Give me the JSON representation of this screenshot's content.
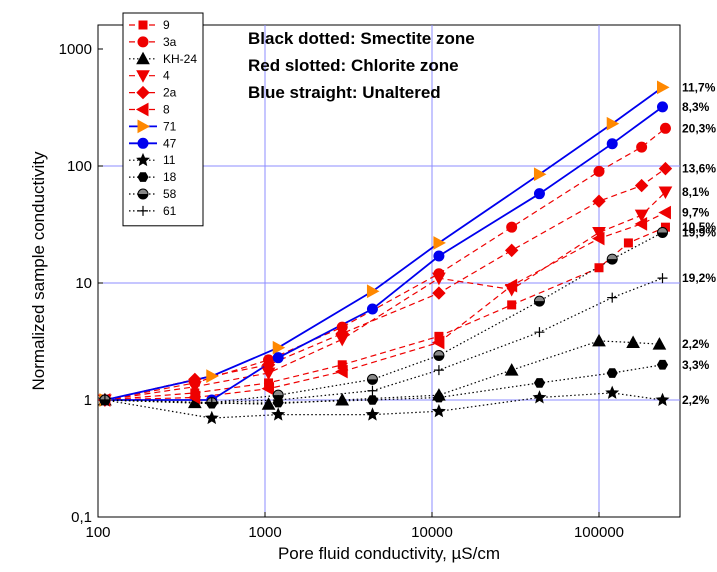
{
  "chart_data": {
    "type": "line",
    "xlabel": "Pore fluid conductivity, µS/cm",
    "ylabel": "Normalized sample conductivity",
    "x_scale": "log",
    "y_scale": "log",
    "xlim": [
      100,
      300000
    ],
    "ylim": [
      0.1,
      1000
    ],
    "x_ticks": [
      {
        "v": 100,
        "label": "100"
      },
      {
        "v": 1000,
        "label": "1000"
      },
      {
        "v": 10000,
        "label": "10000"
      },
      {
        "v": 100000,
        "label": "100000"
      }
    ],
    "y_ticks": [
      {
        "v": 0.1,
        "label": "0,1"
      },
      {
        "v": 1,
        "label": "1"
      },
      {
        "v": 10,
        "label": "10"
      },
      {
        "v": 100,
        "label": "100"
      },
      {
        "v": 1000,
        "label": "1000"
      }
    ],
    "grid": true,
    "grid_color": "#8c8cff",
    "legend_position": "top-left, inside",
    "annotations": [
      "Black dotted: Smectite zone",
      "Red slotted: Chlorite zone",
      "Blue straight: Unaltered"
    ],
    "series": [
      {
        "name": "9",
        "color": "#ee0000",
        "style": "dashed",
        "marker": "square",
        "x": [
          110,
          380,
          1050,
          2900,
          11000,
          30000,
          100000,
          150000,
          250000
        ],
        "y": [
          1,
          1.15,
          1.4,
          2.0,
          3.5,
          6.5,
          13.5,
          22,
          30
        ],
        "end_label": "10,5%"
      },
      {
        "name": "3a",
        "color": "#ee0000",
        "style": "dashed",
        "marker": "circle",
        "x": [
          110,
          380,
          1050,
          2900,
          11000,
          30000,
          100000,
          180000,
          250000
        ],
        "y": [
          1,
          1.4,
          2.2,
          4.2,
          12,
          30,
          90,
          145,
          210
        ],
        "end_label": "20,3%"
      },
      {
        "name": "KH-24",
        "color": "#000000",
        "style": "dotted",
        "marker": "triangle-up",
        "x": [
          110,
          380,
          1050,
          2900,
          11000,
          30000,
          100000,
          160000,
          230000
        ],
        "y": [
          1,
          0.95,
          0.92,
          1.0,
          1.1,
          1.8,
          3.2,
          3.1,
          3.0
        ],
        "end_label": "2,2%"
      },
      {
        "name": "4",
        "color": "#ee0000",
        "style": "dashed",
        "marker": "triangle-down",
        "x": [
          110,
          380,
          1050,
          2900,
          11000,
          30000,
          100000,
          180000,
          250000
        ],
        "y": [
          1,
          1.3,
          1.7,
          3.3,
          11,
          8.8,
          27,
          38,
          60
        ],
        "end_label": "8,1%"
      },
      {
        "name": "2a",
        "color": "#ee0000",
        "style": "dashed",
        "marker": "diamond",
        "x": [
          110,
          380,
          1050,
          2900,
          11000,
          30000,
          100000,
          180000,
          250000
        ],
        "y": [
          1,
          1.5,
          2.0,
          3.7,
          8.2,
          19,
          50,
          68,
          95
        ],
        "end_label": "13,6%"
      },
      {
        "name": "8",
        "color": "#ee0000",
        "style": "dashed",
        "marker": "triangle-left",
        "x": [
          110,
          380,
          1050,
          2900,
          11000,
          30000,
          100000,
          180000,
          250000
        ],
        "y": [
          1,
          1.05,
          1.25,
          1.75,
          3.1,
          9.5,
          24,
          32,
          40
        ],
        "end_label": "9,7%"
      },
      {
        "name": "71",
        "color": "#ff8800",
        "line_color": "#0000ee",
        "style": "solid",
        "marker": "triangle-right",
        "x": [
          110,
          480,
          1200,
          4400,
          11000,
          44000,
          120000,
          240000
        ],
        "y": [
          1,
          1.6,
          2.8,
          8.5,
          22,
          85,
          230,
          470
        ],
        "end_label": "11,7%"
      },
      {
        "name": "47",
        "color": "#0000ee",
        "style": "solid",
        "marker": "circle",
        "x": [
          110,
          480,
          1200,
          4400,
          11000,
          44000,
          120000,
          240000
        ],
        "y": [
          1,
          1.0,
          2.3,
          6.0,
          17,
          58,
          155,
          320
        ],
        "end_label": "8,3%"
      },
      {
        "name": "11",
        "color": "#000000",
        "style": "dotted",
        "marker": "star",
        "x": [
          110,
          480,
          1200,
          4400,
          11000,
          44000,
          120000,
          240000
        ],
        "y": [
          1,
          0.7,
          0.75,
          0.75,
          0.8,
          1.05,
          1.15,
          1.0
        ],
        "end_label": "2,2%"
      },
      {
        "name": "18",
        "color": "#000000",
        "style": "dotted",
        "marker": "hexagon",
        "x": [
          110,
          480,
          1200,
          4400,
          11000,
          44000,
          120000,
          240000
        ],
        "y": [
          1,
          0.93,
          0.95,
          1.0,
          1.05,
          1.4,
          1.7,
          2.0
        ],
        "end_label": "3,3%"
      },
      {
        "name": "58",
        "color": "#000000",
        "style": "dotted",
        "marker": "half-circle",
        "x": [
          110,
          480,
          1200,
          4400,
          11000,
          44000,
          120000,
          240000
        ],
        "y": [
          1,
          0.95,
          1.1,
          1.5,
          2.4,
          7.0,
          16,
          27
        ],
        "end_label": "19,9%"
      },
      {
        "name": "61",
        "color": "#000000",
        "style": "dotted",
        "marker": "plus",
        "x": [
          110,
          480,
          1200,
          4400,
          11000,
          44000,
          120000,
          240000
        ],
        "y": [
          1,
          0.95,
          1.0,
          1.2,
          1.8,
          3.8,
          7.5,
          11
        ],
        "end_label": "19,2%"
      }
    ]
  }
}
